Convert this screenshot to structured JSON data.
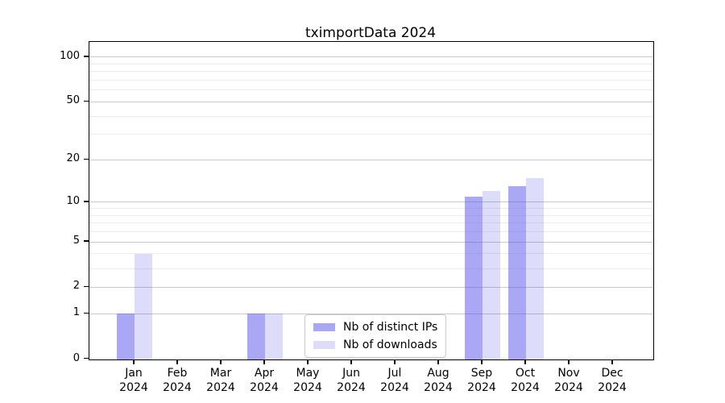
{
  "colors": {
    "ips": "rgba(85, 80, 235, 0.5)",
    "downloads": "rgba(85, 80, 235, 0.2)",
    "axis": "#000000",
    "major_grid": "#c9c9c9",
    "minor_grid": "#ececec",
    "legend_border": "#c9c9c9"
  },
  "chart_data": {
    "type": "bar",
    "title": "tximportData 2024",
    "categories": [
      "Jan 2024",
      "Feb 2024",
      "Mar 2024",
      "Apr 2024",
      "May 2024",
      "Jun 2024",
      "Jul 2024",
      "Aug 2024",
      "Sep 2024",
      "Oct 2024",
      "Nov 2024",
      "Dec 2024"
    ],
    "month_labels": [
      "Jan",
      "Feb",
      "Mar",
      "Apr",
      "May",
      "Jun",
      "Jul",
      "Aug",
      "Sep",
      "Oct",
      "Nov",
      "Dec"
    ],
    "year_label": "2024",
    "series": [
      {
        "name": "Nb of distinct IPs",
        "color_key": "ips",
        "values": [
          1,
          0,
          0,
          1,
          0,
          0,
          0,
          0,
          11,
          13,
          0,
          0
        ]
      },
      {
        "name": "Nb of downloads",
        "color_key": "downloads",
        "values": [
          4,
          0,
          0,
          1,
          0,
          0,
          0,
          0,
          12,
          15,
          0,
          0
        ]
      }
    ],
    "xlabel": "",
    "ylabel": "",
    "y_axis": {
      "scale": "log1p",
      "tick_values": [
        0,
        1,
        2,
        5,
        10,
        20,
        50,
        100
      ],
      "tick_labels": [
        "0",
        "1",
        "2",
        "5",
        "10",
        "20",
        "50",
        "100"
      ],
      "gridline_values": [
        1,
        2,
        3,
        4,
        5,
        6,
        7,
        8,
        9,
        10,
        20,
        30,
        40,
        50,
        60,
        70,
        80,
        90,
        100
      ],
      "ylim": [
        0,
        115
      ]
    },
    "grid": true,
    "legend_position": "inside-bottom-center"
  }
}
